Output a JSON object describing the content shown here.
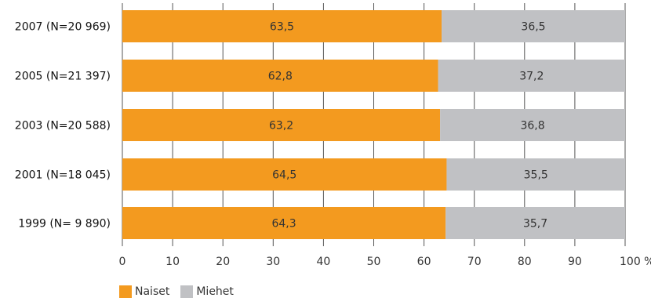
{
  "chart_data": {
    "type": "bar",
    "orientation": "horizontal",
    "stacked": true,
    "categories": [
      "2007 (N=20 969)",
      "2005 (N=21 397)",
      "2003 (N=20 588)",
      "2001 (N=18 045)",
      "1999 (N= 9 890)"
    ],
    "series": [
      {
        "name": "Naiset",
        "color": "#f39a1f",
        "values": [
          63.5,
          62.8,
          63.2,
          64.5,
          64.3
        ],
        "labels": [
          "63,5",
          "62,8",
          "63,2",
          "64,5",
          "64,3"
        ]
      },
      {
        "name": "Miehet",
        "color": "#c0c1c4",
        "values": [
          36.5,
          37.2,
          36.8,
          35.5,
          35.7
        ],
        "labels": [
          "36,5",
          "37,2",
          "36,8",
          "35,5",
          "35,7"
        ]
      }
    ],
    "xlim": [
      0,
      100
    ],
    "xticks": [
      "0",
      "10",
      "20",
      "30",
      "40",
      "50",
      "60",
      "70",
      "80",
      "90",
      "100 %"
    ],
    "grid": true,
    "legend_position": "bottom-left"
  }
}
